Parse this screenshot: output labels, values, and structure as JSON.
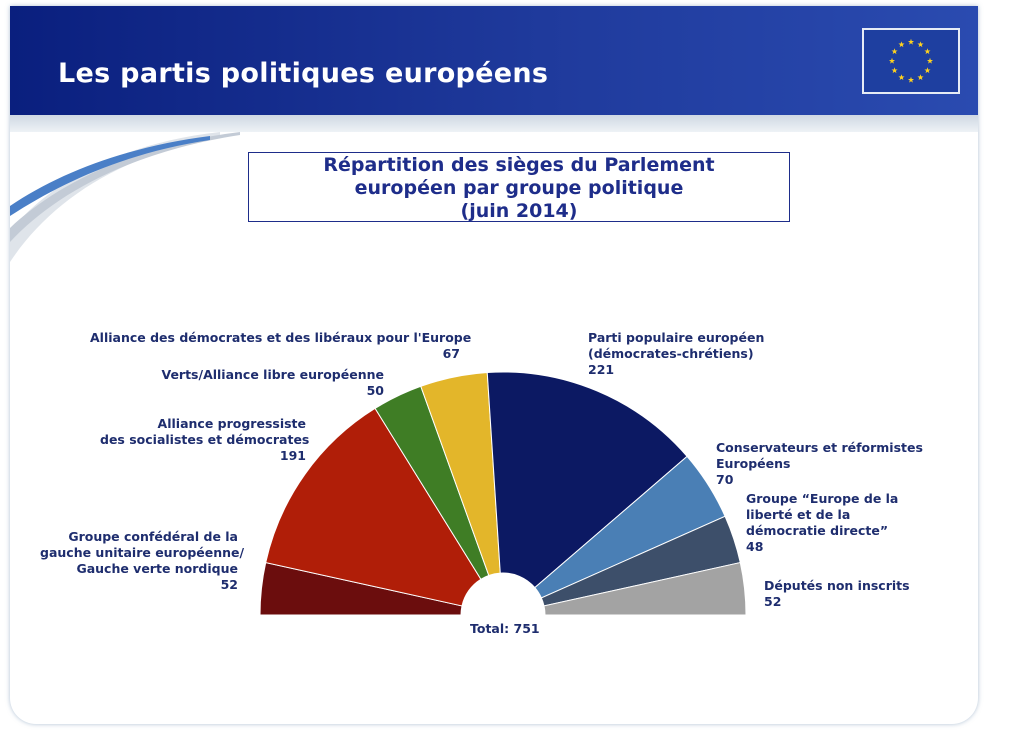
{
  "header": {
    "title": "Les partis politiques européens",
    "flag_icon": "eu-flag-icon",
    "accent_color": "#1f3a9c"
  },
  "chart_data": {
    "type": "pie",
    "subtype": "half-donut",
    "title_lines": [
      "Répartition des sièges du Parlement",
      "européen par groupe politique",
      "(juin 2014)"
    ],
    "total_label": "Total: 751",
    "slices": [
      {
        "key": "gue",
        "label_lines": [
          "Groupe confédéral de la",
          "gauche unitaire européenne/",
          "Gauche verte nordique"
        ],
        "value": 52,
        "color": "#6b0d0d"
      },
      {
        "key": "sd",
        "label_lines": [
          "Alliance progressiste",
          "des socialistes et démocrates"
        ],
        "value": 191,
        "color": "#b01e08"
      },
      {
        "key": "greens",
        "label_lines": [
          "Verts/Alliance libre européenne"
        ],
        "value": 50,
        "color": "#3f7d25"
      },
      {
        "key": "alde",
        "label_lines": [
          "Alliance des démocrates et des libéraux pour l'Europe"
        ],
        "value": 67,
        "color": "#e3b62a"
      },
      {
        "key": "epp",
        "label_lines": [
          "Parti populaire européen",
          "(démocrates-chrétiens)"
        ],
        "value": 221,
        "color": "#0c1963"
      },
      {
        "key": "ecr",
        "label_lines": [
          "Conservateurs et réformistes",
          "Européens"
        ],
        "value": 70,
        "color": "#4a7fb5"
      },
      {
        "key": "efdd",
        "label_lines": [
          "Groupe “Europe de la",
          "liberté et de la",
          "démocratie directe”"
        ],
        "value": 48,
        "color": "#3d4f6a"
      },
      {
        "key": "ni",
        "label_lines": [
          "Députés non inscrits"
        ],
        "value": 52,
        "color": "#a3a3a3"
      }
    ]
  }
}
